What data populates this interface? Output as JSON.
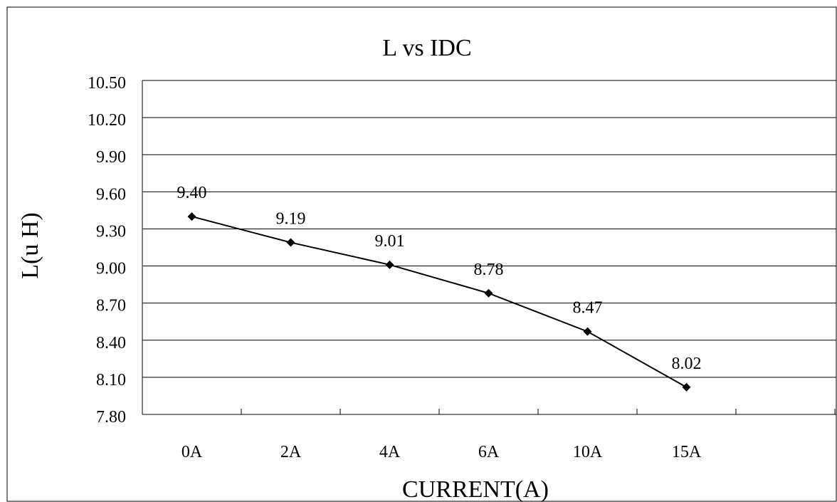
{
  "chart_data": {
    "type": "line",
    "title": "L vs IDC",
    "xlabel": "CURRENT(A)",
    "ylabel": "L(u H)",
    "categories": [
      "0A",
      "2A",
      "4A",
      "6A",
      "10A",
      "15A"
    ],
    "values": [
      9.4,
      9.19,
      9.01,
      8.78,
      8.47,
      8.02
    ],
    "data_labels": [
      "9.40",
      "9.19",
      "9.01",
      "8.78",
      "8.47",
      "8.02"
    ],
    "ylim": [
      7.8,
      10.5
    ],
    "yticks": [
      7.8,
      8.1,
      8.4,
      8.7,
      9.0,
      9.3,
      9.6,
      9.9,
      10.2,
      10.5
    ],
    "ytick_labels": [
      "7.80",
      "8.10",
      "8.40",
      "8.70",
      "9.00",
      "9.30",
      "9.60",
      "9.90",
      "10.20",
      "10.50"
    ],
    "grid": true,
    "legend": "none",
    "marker": "diamond",
    "line_color": "#000000"
  }
}
